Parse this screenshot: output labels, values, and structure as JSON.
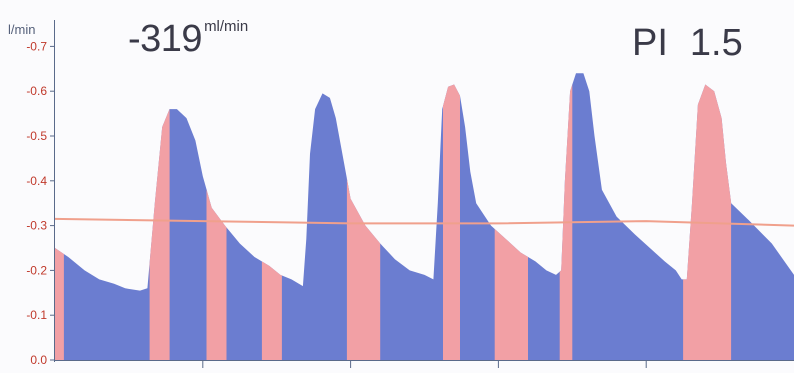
{
  "header": {
    "unit_label": "l/min",
    "flow_value": "-319",
    "flow_unit": "ml/min",
    "pi_label": "PI",
    "pi_value": "1.5"
  },
  "colors": {
    "blue_fill": "#6b7dd0",
    "pink_fill": "#f2a0a5",
    "mean_line": "#f0a08c",
    "tick_text": "#c0392b",
    "axis": "#5a6a8a"
  },
  "chart_data": {
    "type": "area",
    "title": "",
    "xlabel": "",
    "ylabel": "l/min",
    "ylim": [
      0,
      0.75
    ],
    "yticks": [
      0.0,
      -0.1,
      -0.2,
      -0.3,
      -0.4,
      -0.5,
      -0.6,
      -0.7
    ],
    "ytick_labels": [
      "0.0",
      "-0.1",
      "-0.2",
      "-0.3",
      "-0.4",
      "-0.5",
      "-0.6",
      "-0.7"
    ],
    "grid": false,
    "x_range": [
      0,
      1
    ],
    "envelope": [
      [
        0.0,
        0.25
      ],
      [
        0.018,
        0.23
      ],
      [
        0.04,
        0.2
      ],
      [
        0.06,
        0.18
      ],
      [
        0.08,
        0.17
      ],
      [
        0.095,
        0.16
      ],
      [
        0.115,
        0.155
      ],
      [
        0.125,
        0.16
      ],
      [
        0.135,
        0.35
      ],
      [
        0.145,
        0.52
      ],
      [
        0.155,
        0.56
      ],
      [
        0.165,
        0.56
      ],
      [
        0.178,
        0.54
      ],
      [
        0.19,
        0.49
      ],
      [
        0.2,
        0.41
      ],
      [
        0.212,
        0.34
      ],
      [
        0.23,
        0.3
      ],
      [
        0.25,
        0.26
      ],
      [
        0.27,
        0.23
      ],
      [
        0.29,
        0.21
      ],
      [
        0.305,
        0.19
      ],
      [
        0.32,
        0.18
      ],
      [
        0.3355,
        0.165
      ],
      [
        0.34,
        0.27
      ],
      [
        0.345,
        0.46
      ],
      [
        0.352,
        0.56
      ],
      [
        0.362,
        0.595
      ],
      [
        0.372,
        0.585
      ],
      [
        0.38,
        0.54
      ],
      [
        0.39,
        0.45
      ],
      [
        0.4,
        0.36
      ],
      [
        0.42,
        0.3
      ],
      [
        0.44,
        0.26
      ],
      [
        0.46,
        0.225
      ],
      [
        0.48,
        0.2
      ],
      [
        0.5,
        0.19
      ],
      [
        0.512,
        0.18
      ],
      [
        0.518,
        0.35
      ],
      [
        0.524,
        0.56
      ],
      [
        0.532,
        0.61
      ],
      [
        0.54,
        0.615
      ],
      [
        0.548,
        0.59
      ],
      [
        0.555,
        0.52
      ],
      [
        0.562,
        0.42
      ],
      [
        0.57,
        0.35
      ],
      [
        0.59,
        0.3
      ],
      [
        0.61,
        0.27
      ],
      [
        0.63,
        0.24
      ],
      [
        0.65,
        0.22
      ],
      [
        0.665,
        0.2
      ],
      [
        0.678,
        0.19
      ],
      [
        0.685,
        0.2
      ],
      [
        0.69,
        0.4
      ],
      [
        0.697,
        0.6
      ],
      [
        0.705,
        0.64
      ],
      [
        0.715,
        0.64
      ],
      [
        0.723,
        0.6
      ],
      [
        0.73,
        0.5
      ],
      [
        0.74,
        0.38
      ],
      [
        0.76,
        0.32
      ],
      [
        0.785,
        0.28
      ],
      [
        0.805,
        0.25
      ],
      [
        0.825,
        0.22
      ],
      [
        0.84,
        0.2
      ],
      [
        0.848,
        0.18
      ],
      [
        0.855,
        0.18
      ],
      [
        0.862,
        0.35
      ],
      [
        0.87,
        0.57
      ],
      [
        0.88,
        0.615
      ],
      [
        0.892,
        0.6
      ],
      [
        0.902,
        0.54
      ],
      [
        0.908,
        0.44
      ],
      [
        0.915,
        0.35
      ],
      [
        0.94,
        0.31
      ],
      [
        0.97,
        0.26
      ],
      [
        1.0,
        0.19
      ]
    ],
    "pink_bands": [
      [
        0.0,
        0.012
      ],
      [
        0.128,
        0.155
      ],
      [
        0.205,
        0.232
      ],
      [
        0.28,
        0.307
      ],
      [
        0.395,
        0.44
      ],
      [
        0.525,
        0.548
      ],
      [
        0.595,
        0.64
      ],
      [
        0.683,
        0.7
      ],
      [
        0.85,
        0.915
      ]
    ],
    "mean_line": [
      [
        0.0,
        0.315
      ],
      [
        0.2,
        0.31
      ],
      [
        0.4,
        0.305
      ],
      [
        0.6,
        0.305
      ],
      [
        0.8,
        0.31
      ],
      [
        0.9,
        0.305
      ],
      [
        1.0,
        0.3
      ]
    ]
  }
}
